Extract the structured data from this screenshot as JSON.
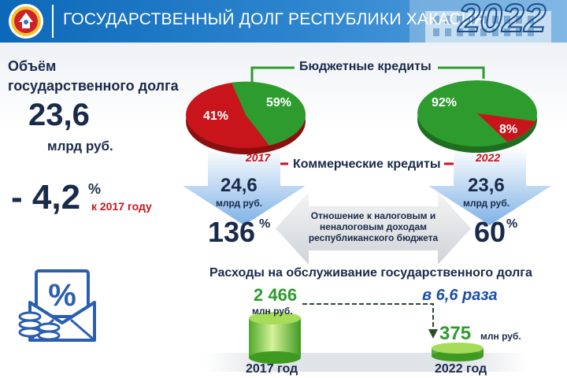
{
  "header": {
    "title": "ГОСУДАРСТВЕННЫЙ ДОЛГ РЕСПУБЛИКИ ХАКАСИЯ",
    "year": "2022"
  },
  "summary": {
    "label_line1": "Объём",
    "label_line2": "государственного долга",
    "value": "23,6",
    "unit": "млрд руб.",
    "change_value": "- 4,2",
    "change_pct": "%",
    "change_note": "к 2017 году"
  },
  "pies": {
    "budget_label": "Бюджетные кредиты",
    "commercial_label": "Коммерческие кредиты",
    "pie_2017": {
      "year": "2017",
      "budget_pct": "59%",
      "commercial_pct": "41%"
    },
    "pie_2022": {
      "year": "2022",
      "budget_pct": "92%",
      "commercial_pct": "8%"
    }
  },
  "ratio": {
    "left_value": "24,6",
    "left_unit": "млрд руб.",
    "left_pct": "136",
    "right_value": "23,6",
    "right_unit": "млрд руб.",
    "right_pct": "60",
    "pct_sign": "%",
    "description_line1": "Отношение к налоговым и",
    "description_line2": "неналоговым доходам",
    "description_line3": "республиканского бюджета"
  },
  "service": {
    "title": "Расходы на обслуживание государственного долга",
    "value_2017": "2 466",
    "unit_2017": "млн руб.",
    "value_2022": "375",
    "unit_2022": "млн руб.",
    "ratio_text": "в 6,6 раза",
    "year_2017": "2017 год",
    "year_2022": "2022 год"
  },
  "colors": {
    "header_blue": "#0c68b8",
    "green": "#2e9b2e",
    "red": "#c8151b",
    "navy": "#1a2a4a",
    "blue_text": "#1a4fa8"
  }
}
